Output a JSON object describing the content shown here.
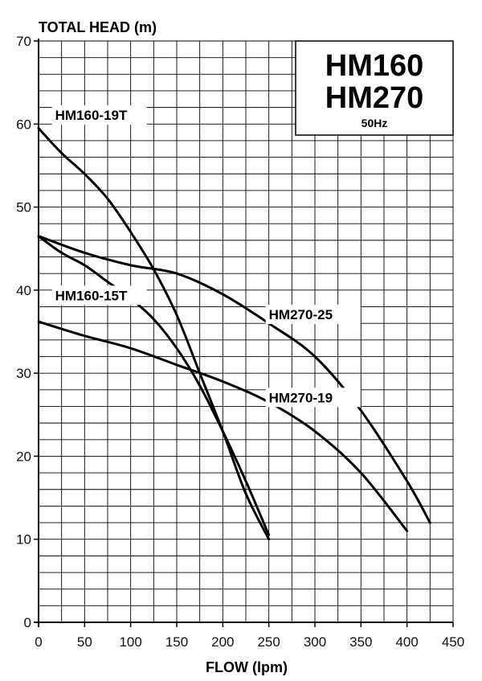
{
  "chart_data": {
    "type": "line",
    "title": "",
    "ylabel": "TOTAL HEAD (m)",
    "xlabel": "FLOW (lpm)",
    "xlim": [
      0,
      450
    ],
    "ylim": [
      0,
      70
    ],
    "x_ticks": [
      0,
      50,
      100,
      150,
      200,
      250,
      300,
      350,
      400,
      450
    ],
    "y_ticks": [
      0,
      10,
      20,
      30,
      40,
      50,
      60,
      70
    ],
    "grid": true,
    "models": [
      "HM160",
      "HM270"
    ],
    "frequency": "50Hz",
    "series": [
      {
        "name": "HM160-19T",
        "points": [
          [
            0,
            59.5
          ],
          [
            25,
            56.5
          ],
          [
            50,
            54
          ],
          [
            75,
            51
          ],
          [
            100,
            47
          ],
          [
            125,
            42.5
          ],
          [
            150,
            37
          ],
          [
            175,
            30
          ],
          [
            200,
            23
          ],
          [
            225,
            15.5
          ],
          [
            250,
            10
          ]
        ]
      },
      {
        "name": "HM160-15T",
        "points": [
          [
            0,
            46.5
          ],
          [
            25,
            44.5
          ],
          [
            50,
            43
          ],
          [
            75,
            41
          ],
          [
            100,
            39
          ],
          [
            125,
            36.5
          ],
          [
            150,
            33
          ],
          [
            175,
            28.5
          ],
          [
            200,
            23
          ],
          [
            225,
            17
          ],
          [
            250,
            10.5
          ]
        ]
      },
      {
        "name": "HM270-25",
        "points": [
          [
            0,
            46.5
          ],
          [
            50,
            44.5
          ],
          [
            100,
            43
          ],
          [
            150,
            42
          ],
          [
            200,
            39.5
          ],
          [
            250,
            36
          ],
          [
            300,
            32
          ],
          [
            350,
            25.5
          ],
          [
            400,
            17
          ],
          [
            425,
            12
          ]
        ]
      },
      {
        "name": "HM270-19",
        "points": [
          [
            0,
            36.2
          ],
          [
            50,
            34.5
          ],
          [
            100,
            33
          ],
          [
            150,
            31
          ],
          [
            200,
            29
          ],
          [
            250,
            26.5
          ],
          [
            300,
            23
          ],
          [
            350,
            18
          ],
          [
            400,
            11
          ]
        ]
      }
    ]
  }
}
